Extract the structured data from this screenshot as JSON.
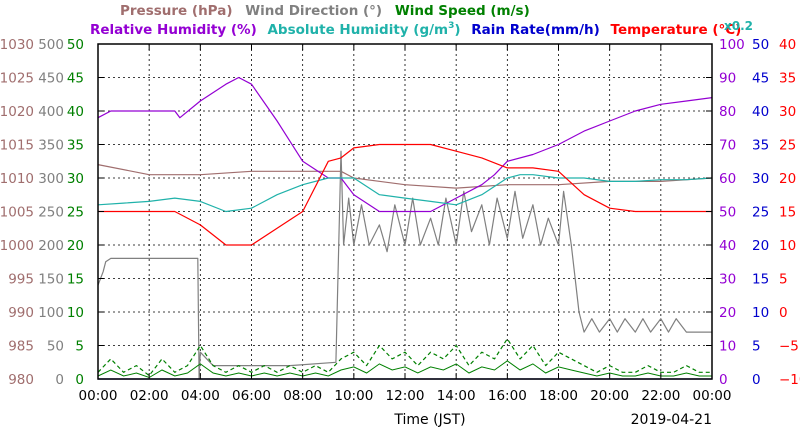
{
  "legend": {
    "row1": [
      {
        "text": "Pressure (hPa)",
        "color": "#a06e6e"
      },
      {
        "text": "Wind Direction (°)",
        "color": "#808080"
      },
      {
        "text": "Wind Speed (m/s)",
        "color": "#008000"
      }
    ],
    "row2": [
      {
        "text": "Relative Humidity (%)",
        "color": "#9400d3"
      },
      {
        "text": "Absolute Humidity (g/m",
        "sup": "3",
        "tail": ")",
        "color": "#20b2aa"
      },
      {
        "text": "Rain Rate(mm/h)",
        "color": "#0000cd"
      },
      {
        "text": "Temperature (°C)",
        "color": "#ff0000"
      }
    ],
    "multiplier": {
      "text": "x0.2",
      "color": "#20b2aa"
    }
  },
  "axes": {
    "x_label": "Time (JST)",
    "date": "2019-04-21",
    "x_ticks": [
      "00:00",
      "02:00",
      "04:00",
      "06:00",
      "08:00",
      "10:00",
      "12:00",
      "14:00",
      "16:00",
      "18:00",
      "20:00",
      "22:00",
      "00:00"
    ],
    "left": [
      {
        "name": "pressure",
        "color": "#a06e6e",
        "ticks": [
          "1030",
          "1025",
          "1020",
          "1015",
          "1010",
          "1005",
          "1000",
          "995",
          "990",
          "985",
          "980"
        ]
      },
      {
        "name": "wind-direction",
        "color": "#808080",
        "ticks": [
          "500",
          "450",
          "400",
          "350",
          "300",
          "250",
          "200",
          "150",
          "100",
          "50",
          "0"
        ]
      },
      {
        "name": "wind-speed",
        "color": "#008000",
        "ticks": [
          "50",
          "45",
          "40",
          "35",
          "30",
          "25",
          "20",
          "15",
          "10",
          "5",
          "0"
        ]
      }
    ],
    "right": [
      {
        "name": "humidity",
        "color": "#9400d3",
        "ticks": [
          "100",
          "90",
          "80",
          "70",
          "60",
          "50",
          "40",
          "30",
          "20",
          "10",
          "0"
        ]
      },
      {
        "name": "rain-rate",
        "color": "#0000cd",
        "ticks": [
          "50",
          "45",
          "40",
          "35",
          "30",
          "25",
          "20",
          "15",
          "10",
          "5",
          "0"
        ]
      },
      {
        "name": "temperature",
        "color": "#ff0000",
        "ticks": [
          "40",
          "35",
          "30",
          "25",
          "20",
          "15",
          "10",
          "5",
          "0",
          "−5",
          "−10"
        ]
      }
    ]
  },
  "chart_data": {
    "type": "line",
    "x_unit": "hours JST",
    "xlim": [
      0,
      24
    ],
    "grid": true,
    "series": [
      {
        "name": "Pressure (hPa)",
        "color": "#a06e6e",
        "ylim": [
          980,
          1030
        ],
        "x": [
          0,
          2,
          4,
          6,
          8,
          9.5,
          10,
          12,
          14,
          16,
          18,
          20,
          22,
          24
        ],
        "y": [
          1012,
          1010.5,
          1010.5,
          1011,
          1011,
          1011,
          1010,
          1009,
          1008.5,
          1009,
          1009,
          1009.5,
          1009.5,
          1010
        ]
      },
      {
        "name": "Wind Direction (°)",
        "color": "#808080",
        "ylim": [
          0,
          500
        ],
        "x": [
          0,
          0.2,
          0.3,
          0.5,
          3.9,
          3.95,
          4,
          4.5,
          7.5,
          9.3,
          9.5,
          9.6,
          9.8,
          10,
          10.3,
          10.6,
          11,
          11.3,
          11.6,
          12,
          12.3,
          12.6,
          13,
          13.3,
          13.6,
          14,
          14.3,
          14.6,
          15,
          15.3,
          15.6,
          16,
          16.3,
          16.6,
          17,
          17.3,
          17.6,
          18,
          18.2,
          18.5,
          18.8,
          19,
          19.3,
          19.6,
          20,
          20.3,
          20.6,
          21,
          21.3,
          21.6,
          22,
          22.3,
          22.6,
          23,
          23.5,
          24
        ],
        "y": [
          140,
          160,
          175,
          180,
          180,
          0,
          40,
          20,
          20,
          25,
          340,
          200,
          270,
          200,
          260,
          200,
          230,
          190,
          260,
          200,
          270,
          200,
          240,
          200,
          270,
          200,
          280,
          220,
          260,
          200,
          270,
          210,
          280,
          210,
          260,
          200,
          240,
          200,
          280,
          200,
          100,
          70,
          90,
          70,
          90,
          70,
          90,
          70,
          90,
          70,
          90,
          70,
          90,
          70,
          70,
          70
        ]
      },
      {
        "name": "Wind Speed (m/s)",
        "color": "#008000",
        "ylim": [
          0,
          50
        ],
        "x": [
          0,
          0.5,
          1,
          1.5,
          2,
          2.5,
          3,
          3.5,
          4,
          4.5,
          5,
          5.5,
          6,
          6.5,
          7,
          7.5,
          8,
          8.5,
          9,
          9.5,
          10,
          10.5,
          11,
          11.5,
          12,
          12.5,
          13,
          13.5,
          14,
          14.5,
          15,
          15.5,
          16,
          16.5,
          17,
          17.5,
          18,
          18.5,
          19,
          19.5,
          20,
          20.5,
          21,
          21.5,
          22,
          22.5,
          23,
          23.5,
          24
        ],
        "y": [
          1,
          3,
          1,
          2,
          0.5,
          3,
          1,
          2,
          5,
          2,
          1,
          2,
          1,
          2,
          1,
          2,
          1,
          2,
          1,
          3,
          4,
          2,
          5,
          3,
          4,
          2,
          4,
          3,
          5,
          2,
          4,
          3,
          6,
          3,
          5,
          2,
          4,
          3,
          2,
          1,
          2,
          1,
          1,
          2,
          1,
          1,
          2,
          1,
          1
        ]
      },
      {
        "name": "Relative Humidity (%)",
        "color": "#9400d3",
        "ylim": [
          0,
          100
        ],
        "x": [
          0,
          0.5,
          1,
          2,
          3,
          3.2,
          4,
          5,
          5.5,
          6,
          7,
          8,
          9,
          9.5,
          10,
          11,
          12,
          13,
          14,
          15,
          15.5,
          16,
          17,
          18,
          19,
          20,
          21,
          22,
          23,
          24
        ],
        "y": [
          78,
          80,
          80,
          80,
          80,
          78,
          83,
          88,
          90,
          88,
          77,
          65,
          60,
          60,
          55,
          50,
          50,
          50,
          54,
          58,
          61,
          65,
          67,
          70,
          74,
          77,
          80,
          82,
          83,
          84
        ]
      },
      {
        "name": "Absolute Humidity (g/m³) x0.2",
        "color": "#20b2aa",
        "ylim": [
          0,
          100
        ],
        "x": [
          0,
          1,
          2,
          3,
          4,
          5,
          6,
          7,
          8,
          9,
          10,
          11,
          12,
          13,
          14,
          15,
          16,
          16.5,
          17,
          18,
          19,
          20,
          21,
          22,
          23,
          24
        ],
        "y": [
          52,
          52.5,
          53,
          54,
          53,
          50,
          51,
          55,
          58,
          60,
          60,
          55,
          54,
          53,
          52,
          55,
          60,
          61,
          61,
          60,
          60,
          59,
          59,
          59.5,
          59.5,
          60
        ]
      },
      {
        "name": "Rain Rate(mm/h)",
        "color": "#0000cd",
        "ylim": [
          0,
          50
        ],
        "x": [
          0,
          24
        ],
        "y": [
          0,
          0
        ]
      },
      {
        "name": "Temperature (°C)",
        "color": "#ff0000",
        "ylim": [
          -10,
          40
        ],
        "x": [
          0,
          1,
          2,
          3,
          4,
          5,
          6,
          7,
          8,
          9,
          9.5,
          10,
          11,
          12,
          13,
          14,
          15,
          16,
          17,
          18,
          19,
          20,
          21,
          22,
          23,
          24
        ],
        "y": [
          15,
          15,
          15,
          15,
          13,
          10,
          10,
          12.5,
          15,
          22.5,
          23,
          24.5,
          25,
          25,
          25,
          24,
          23,
          21.5,
          21.5,
          21,
          17.5,
          15.5,
          15,
          15,
          15,
          15
        ]
      }
    ]
  }
}
